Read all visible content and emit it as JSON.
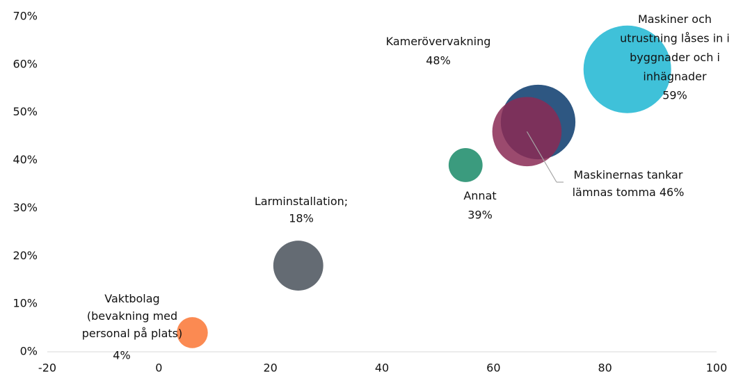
{
  "chart_data": {
    "type": "bubble",
    "xlim": [
      -20,
      100
    ],
    "xticks": [
      -20,
      0,
      20,
      40,
      60,
      80,
      100
    ],
    "ylim": [
      0,
      70
    ],
    "yticks": [
      {
        "value": 0,
        "label": "0%"
      },
      {
        "value": 10,
        "label": "10%"
      },
      {
        "value": 20,
        "label": "20%"
      },
      {
        "value": 30,
        "label": "30%"
      },
      {
        "value": 40,
        "label": "40%"
      },
      {
        "value": 50,
        "label": "50%"
      },
      {
        "value": 60,
        "label": "60%"
      },
      {
        "value": 70,
        "label": "70%"
      }
    ],
    "grid": false,
    "points": [
      {
        "name_lines": [
          "Vaktbolag",
          "(bevakning med",
          "personal på plats)"
        ],
        "value_label": "4%",
        "x": 6,
        "y": 4,
        "size": 5,
        "color": "#fb8a52"
      },
      {
        "name_lines": [
          "Larminstallation;"
        ],
        "value_label": "18%",
        "x": 25,
        "y": 18,
        "size": 13,
        "color": "#646b73"
      },
      {
        "name_lines": [
          "Annat"
        ],
        "value_label": "39%",
        "x": 55,
        "y": 39,
        "size": 6,
        "color": "#3b9b7e"
      },
      {
        "name_lines": [
          "Kamerövervakning"
        ],
        "value_label": "48%",
        "x": 68,
        "y": 48,
        "size": 29,
        "color": "#2e5782"
      },
      {
        "name_lines": [
          "Maskinernas tankar",
          "lämnas tomma"
        ],
        "value_label": "46%",
        "x": 66,
        "y": 46,
        "size": 25,
        "color": "#8a2a55"
      },
      {
        "name_lines": [
          "Maskiner och",
          "utrustning låses in i",
          "byggnader och i",
          "inhägnader"
        ],
        "value_label": "59%",
        "x": 84,
        "y": 59,
        "size": 40,
        "color": "#3fc1d9"
      }
    ]
  }
}
